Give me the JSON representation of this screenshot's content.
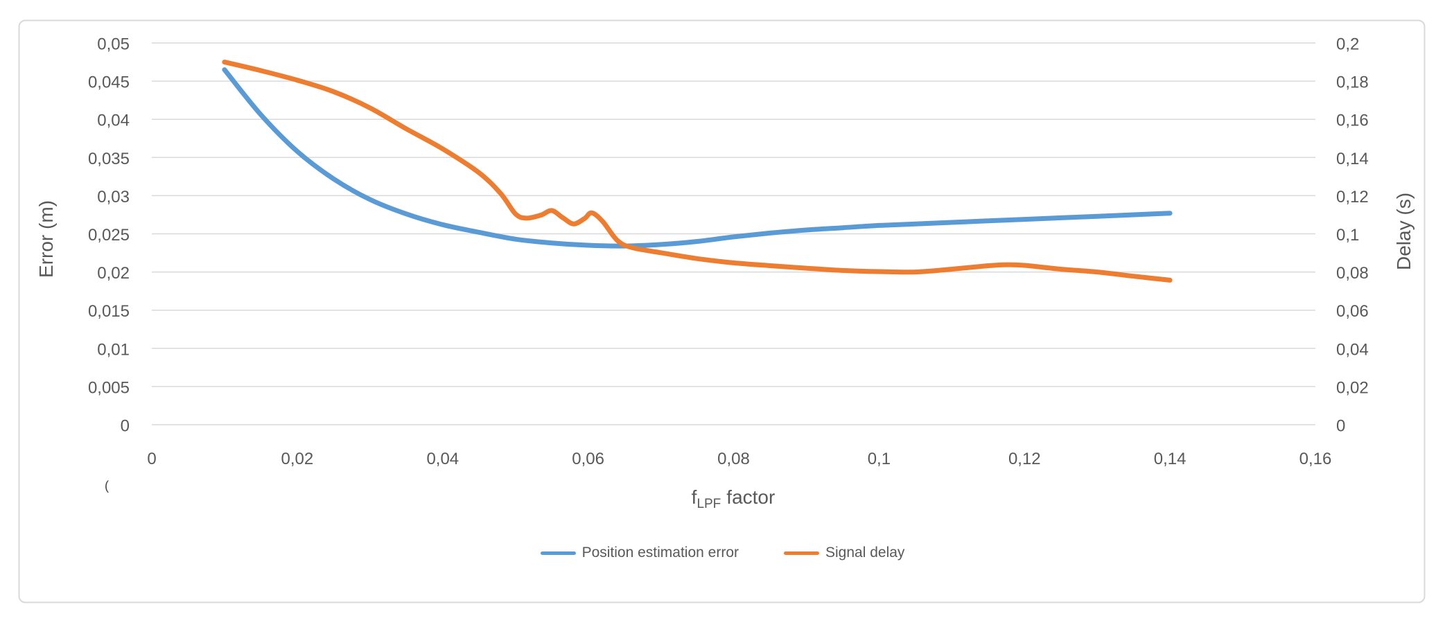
{
  "chart_data": {
    "type": "line",
    "grid": "horizontal",
    "legend_position": "bottom-center",
    "background": "#ffffff",
    "border_color": "#d9d9d9",
    "gridline_color": "#d9d9d9",
    "text_color": "#595959",
    "x_axis": {
      "title_prefix": "f",
      "title_subscript": "LPF",
      "title_suffix": "factor",
      "min": 0,
      "max": 0.16,
      "tick_values": [
        0,
        0.02,
        0.04,
        0.06,
        0.08,
        0.1,
        0.12,
        0.14,
        0.16
      ],
      "tick_labels": [
        "0",
        "0,02",
        "0,04",
        "0,06",
        "0,08",
        "0,1",
        "0,12",
        "0,14",
        "0,16"
      ]
    },
    "y_left": {
      "label": "Error (m)",
      "min": 0,
      "max": 0.05,
      "tick_values": [
        0,
        0.005,
        0.01,
        0.015,
        0.02,
        0.025,
        0.03,
        0.035,
        0.04,
        0.045,
        0.05
      ],
      "tick_labels": [
        "0",
        "0,005",
        "0,01",
        "0,015",
        "0,02",
        "0,025",
        "0,03",
        "0,035",
        "0,04",
        "0,045",
        "0,05"
      ]
    },
    "y_right": {
      "label": "Delay (s)",
      "min": 0,
      "max": 0.2,
      "tick_values": [
        0,
        0.02,
        0.04,
        0.06,
        0.08,
        0.1,
        0.12,
        0.14,
        0.16,
        0.18,
        0.2
      ],
      "tick_labels": [
        "0",
        "0,02",
        "0,04",
        "0,06",
        "0,08",
        "0,1",
        "0,12",
        "0,14",
        "0,16",
        "0,18",
        "0,2"
      ]
    },
    "series": [
      {
        "name": "Position estimation error",
        "color": "#5b9bd5",
        "axis": "left",
        "points": [
          [
            0.01,
            0.0465
          ],
          [
            0.015,
            0.0406
          ],
          [
            0.02,
            0.0358
          ],
          [
            0.025,
            0.0322
          ],
          [
            0.03,
            0.0295
          ],
          [
            0.035,
            0.0276
          ],
          [
            0.04,
            0.0262
          ],
          [
            0.045,
            0.0252
          ],
          [
            0.05,
            0.0243
          ],
          [
            0.055,
            0.0238
          ],
          [
            0.06,
            0.0235
          ],
          [
            0.065,
            0.0234
          ],
          [
            0.07,
            0.0236
          ],
          [
            0.075,
            0.024
          ],
          [
            0.08,
            0.0246
          ],
          [
            0.085,
            0.0251
          ],
          [
            0.09,
            0.0255
          ],
          [
            0.095,
            0.0258
          ],
          [
            0.1,
            0.0261
          ],
          [
            0.105,
            0.0263
          ],
          [
            0.11,
            0.0265
          ],
          [
            0.115,
            0.0267
          ],
          [
            0.12,
            0.0269
          ],
          [
            0.125,
            0.0271
          ],
          [
            0.13,
            0.0273
          ],
          [
            0.135,
            0.0275
          ],
          [
            0.14,
            0.0277
          ]
        ]
      },
      {
        "name": "Signal delay",
        "color": "#ed7d31",
        "axis": "right",
        "points": [
          [
            0.01,
            0.19
          ],
          [
            0.015,
            0.1855
          ],
          [
            0.02,
            0.1805
          ],
          [
            0.025,
            0.1745
          ],
          [
            0.03,
            0.166
          ],
          [
            0.035,
            0.155
          ],
          [
            0.04,
            0.1445
          ],
          [
            0.045,
            0.132
          ],
          [
            0.048,
            0.121
          ],
          [
            0.05,
            0.1105
          ],
          [
            0.0515,
            0.1082
          ],
          [
            0.0535,
            0.1098
          ],
          [
            0.055,
            0.1122
          ],
          [
            0.0565,
            0.1085
          ],
          [
            0.058,
            0.1052
          ],
          [
            0.0595,
            0.108
          ],
          [
            0.0605,
            0.111
          ],
          [
            0.062,
            0.1065
          ],
          [
            0.064,
            0.0966
          ],
          [
            0.066,
            0.0928
          ],
          [
            0.07,
            0.0901
          ],
          [
            0.075,
            0.087
          ],
          [
            0.08,
            0.0848
          ],
          [
            0.085,
            0.0833
          ],
          [
            0.09,
            0.082
          ],
          [
            0.095,
            0.0808
          ],
          [
            0.1,
            0.0802
          ],
          [
            0.105,
            0.08
          ],
          [
            0.11,
            0.0815
          ],
          [
            0.115,
            0.0833
          ],
          [
            0.1175,
            0.0838
          ],
          [
            0.12,
            0.0835
          ],
          [
            0.125,
            0.0815
          ],
          [
            0.13,
            0.08
          ],
          [
            0.135,
            0.0778
          ],
          [
            0.14,
            0.0757
          ]
        ]
      }
    ]
  },
  "artifact_text": "("
}
